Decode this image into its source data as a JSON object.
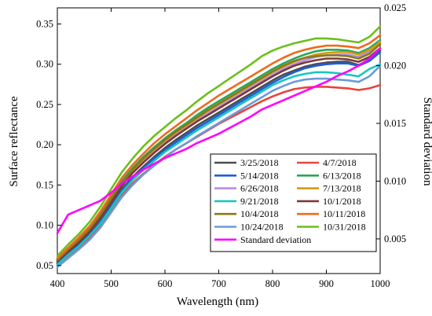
{
  "chart_data": {
    "type": "line",
    "xlabel": "Wavelength (nm)",
    "ylabel": "Surface reflectance",
    "y2label": "Standard deviation",
    "xlim": [
      400,
      1000
    ],
    "ylim": [
      0.04,
      0.37
    ],
    "y2lim": [
      0.002,
      0.025
    ],
    "xticks": [
      400,
      500,
      600,
      700,
      800,
      900,
      1000
    ],
    "yticks": [
      "0.05",
      "0.10",
      "0.15",
      "0.20",
      "0.25",
      "0.30",
      "0.35"
    ],
    "y2ticks": [
      "0.005",
      "0.010",
      "0.015",
      "0.020",
      "0.025"
    ],
    "legend": {
      "placement": "lower-right",
      "columns": 2
    },
    "grid": false,
    "x": [
      400,
      420,
      440,
      460,
      480,
      500,
      520,
      540,
      560,
      580,
      600,
      620,
      640,
      660,
      680,
      700,
      720,
      740,
      760,
      780,
      800,
      820,
      840,
      860,
      880,
      900,
      920,
      940,
      960,
      980,
      1000
    ],
    "series": [
      {
        "name": "3/25/2018",
        "color": "#4d4d4d",
        "axis": "left",
        "values": [
          0.053,
          0.065,
          0.076,
          0.089,
          0.105,
          0.125,
          0.145,
          0.16,
          0.173,
          0.185,
          0.196,
          0.206,
          0.215,
          0.224,
          0.232,
          0.24,
          0.248,
          0.256,
          0.264,
          0.272,
          0.28,
          0.287,
          0.292,
          0.297,
          0.3,
          0.302,
          0.303,
          0.303,
          0.299,
          0.305,
          0.317
        ]
      },
      {
        "name": "4/7/2018",
        "color": "#e8453c",
        "axis": "left",
        "values": [
          0.05,
          0.061,
          0.072,
          0.084,
          0.1,
          0.118,
          0.137,
          0.152,
          0.164,
          0.175,
          0.185,
          0.194,
          0.202,
          0.21,
          0.218,
          0.226,
          0.233,
          0.24,
          0.247,
          0.254,
          0.26,
          0.265,
          0.269,
          0.271,
          0.272,
          0.272,
          0.271,
          0.27,
          0.268,
          0.27,
          0.274
        ]
      },
      {
        "name": "5/14/2018",
        "color": "#1f5fd6",
        "axis": "left",
        "values": [
          0.052,
          0.064,
          0.075,
          0.088,
          0.104,
          0.123,
          0.143,
          0.158,
          0.171,
          0.183,
          0.193,
          0.203,
          0.212,
          0.221,
          0.229,
          0.237,
          0.245,
          0.253,
          0.261,
          0.269,
          0.277,
          0.284,
          0.29,
          0.295,
          0.298,
          0.3,
          0.301,
          0.301,
          0.298,
          0.304,
          0.315
        ]
      },
      {
        "name": "6/13/2018",
        "color": "#2aa65a",
        "axis": "left",
        "values": [
          0.058,
          0.071,
          0.083,
          0.097,
          0.114,
          0.135,
          0.155,
          0.171,
          0.185,
          0.197,
          0.208,
          0.218,
          0.227,
          0.237,
          0.246,
          0.254,
          0.262,
          0.27,
          0.278,
          0.286,
          0.294,
          0.301,
          0.307,
          0.312,
          0.316,
          0.318,
          0.318,
          0.317,
          0.314,
          0.32,
          0.33
        ]
      },
      {
        "name": "6/26/2018",
        "color": "#b58ee8",
        "axis": "left",
        "values": [
          0.055,
          0.068,
          0.08,
          0.093,
          0.11,
          0.13,
          0.15,
          0.166,
          0.179,
          0.191,
          0.202,
          0.212,
          0.221,
          0.23,
          0.239,
          0.247,
          0.255,
          0.263,
          0.271,
          0.279,
          0.287,
          0.294,
          0.3,
          0.305,
          0.309,
          0.311,
          0.312,
          0.312,
          0.309,
          0.316,
          0.328
        ]
      },
      {
        "name": "7/13/2018",
        "color": "#d39a12",
        "axis": "left",
        "values": [
          0.056,
          0.069,
          0.081,
          0.095,
          0.112,
          0.132,
          0.152,
          0.168,
          0.182,
          0.194,
          0.205,
          0.215,
          0.224,
          0.233,
          0.242,
          0.25,
          0.258,
          0.266,
          0.274,
          0.282,
          0.29,
          0.297,
          0.303,
          0.308,
          0.312,
          0.314,
          0.315,
          0.315,
          0.312,
          0.318,
          0.327
        ]
      },
      {
        "name": "9/21/2018",
        "color": "#16c7c0",
        "axis": "left",
        "values": [
          0.051,
          0.063,
          0.074,
          0.087,
          0.102,
          0.121,
          0.141,
          0.156,
          0.169,
          0.18,
          0.191,
          0.2,
          0.209,
          0.218,
          0.226,
          0.234,
          0.242,
          0.25,
          0.258,
          0.266,
          0.274,
          0.28,
          0.285,
          0.288,
          0.29,
          0.29,
          0.289,
          0.287,
          0.285,
          0.294,
          0.3
        ]
      },
      {
        "name": "10/1/2018",
        "color": "#7a3a3a",
        "axis": "left",
        "values": [
          0.055,
          0.067,
          0.079,
          0.092,
          0.109,
          0.129,
          0.149,
          0.165,
          0.178,
          0.19,
          0.201,
          0.211,
          0.22,
          0.229,
          0.237,
          0.245,
          0.253,
          0.261,
          0.269,
          0.277,
          0.285,
          0.292,
          0.298,
          0.302,
          0.305,
          0.307,
          0.307,
          0.306,
          0.303,
          0.309,
          0.32
        ]
      },
      {
        "name": "10/4/2018",
        "color": "#8a7a18",
        "axis": "left",
        "values": [
          0.057,
          0.07,
          0.082,
          0.096,
          0.113,
          0.133,
          0.153,
          0.169,
          0.183,
          0.195,
          0.206,
          0.216,
          0.225,
          0.234,
          0.243,
          0.251,
          0.259,
          0.267,
          0.275,
          0.283,
          0.291,
          0.298,
          0.304,
          0.308,
          0.31,
          0.311,
          0.311,
          0.31,
          0.307,
          0.313,
          0.325
        ]
      },
      {
        "name": "10/11/2018",
        "color": "#ef6a1e",
        "axis": "left",
        "values": [
          0.059,
          0.072,
          0.085,
          0.099,
          0.117,
          0.138,
          0.159,
          0.175,
          0.189,
          0.202,
          0.213,
          0.223,
          0.233,
          0.243,
          0.252,
          0.261,
          0.269,
          0.277,
          0.285,
          0.293,
          0.301,
          0.308,
          0.314,
          0.318,
          0.321,
          0.323,
          0.323,
          0.322,
          0.32,
          0.326,
          0.336
        ]
      },
      {
        "name": "10/24/2018",
        "color": "#6a9bd9",
        "axis": "left",
        "values": [
          0.048,
          0.059,
          0.07,
          0.082,
          0.097,
          0.116,
          0.135,
          0.15,
          0.163,
          0.174,
          0.184,
          0.194,
          0.202,
          0.211,
          0.219,
          0.227,
          0.235,
          0.243,
          0.251,
          0.259,
          0.267,
          0.273,
          0.278,
          0.281,
          0.282,
          0.282,
          0.281,
          0.28,
          0.278,
          0.285,
          0.298
        ]
      },
      {
        "name": "10/31/2018",
        "color": "#6cbf1c",
        "axis": "left",
        "values": [
          0.062,
          0.076,
          0.089,
          0.104,
          0.123,
          0.145,
          0.166,
          0.183,
          0.198,
          0.211,
          0.222,
          0.233,
          0.243,
          0.254,
          0.264,
          0.273,
          0.282,
          0.291,
          0.3,
          0.31,
          0.317,
          0.322,
          0.326,
          0.329,
          0.332,
          0.332,
          0.331,
          0.329,
          0.327,
          0.334,
          0.347
        ]
      },
      {
        "name": "Standard deviation",
        "color": "#ff00ff",
        "axis": "right",
        "values": [
          0.0055,
          0.0071,
          0.0075,
          0.0079,
          0.0083,
          0.009,
          0.0098,
          0.0104,
          0.011,
          0.0115,
          0.012,
          0.0124,
          0.0128,
          0.0133,
          0.0137,
          0.0141,
          0.0146,
          0.0151,
          0.0156,
          0.0162,
          0.0166,
          0.017,
          0.0174,
          0.0178,
          0.0182,
          0.0186,
          0.0191,
          0.0195,
          0.02,
          0.0206,
          0.0215
        ]
      }
    ]
  }
}
